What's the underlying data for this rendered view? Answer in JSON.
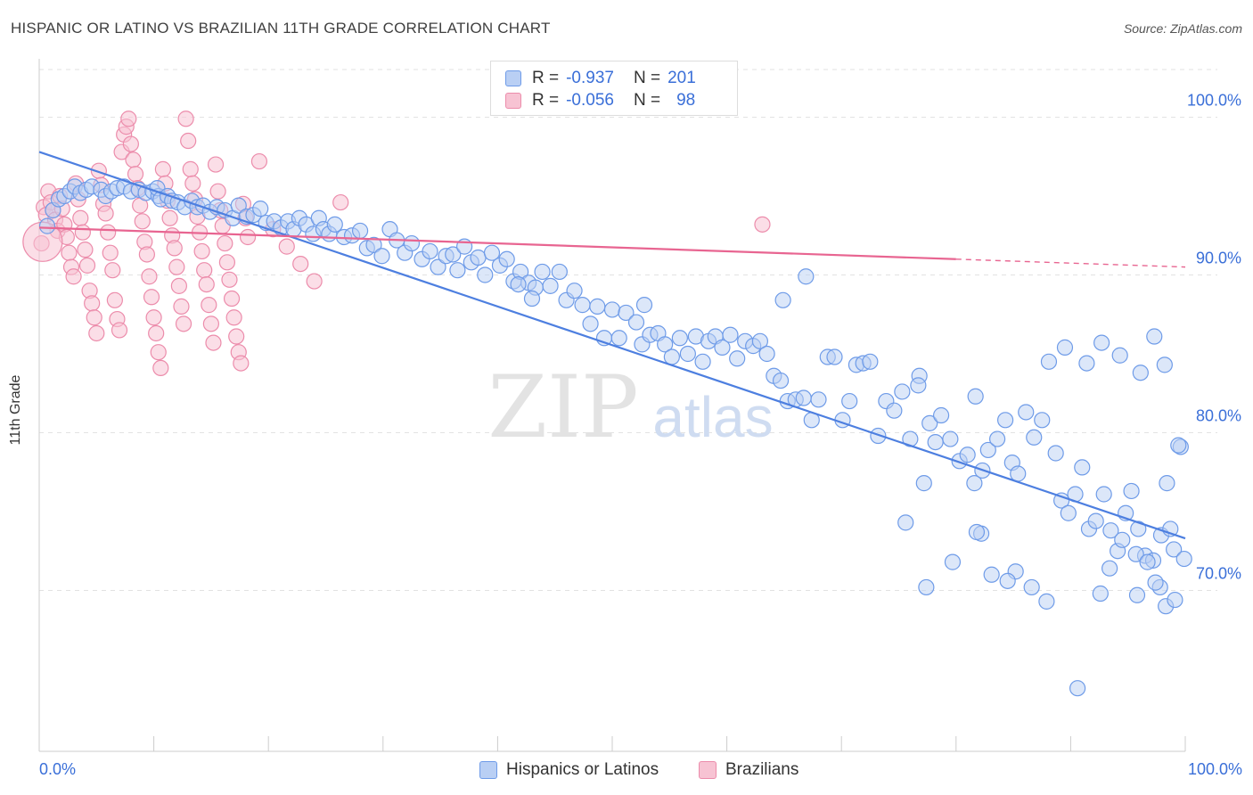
{
  "header": {
    "title": "HISPANIC OR LATINO VS BRAZILIAN 11TH GRADE CORRELATION CHART",
    "source": "Source: ZipAtlas.com"
  },
  "watermark": {
    "zip": "ZIP",
    "atlas": "atlas"
  },
  "legend": {
    "r_label": "R =",
    "n_label": "N =",
    "series": [
      {
        "name": "Hispanics or Latinos",
        "r": "-0.937",
        "n": "201",
        "color": "#6e9be8",
        "fill": "#b9cff4"
      },
      {
        "name": "Brazilians",
        "r": "-0.056",
        "n": "98",
        "color": "#ec8cab",
        "fill": "#f7c3d3"
      }
    ]
  },
  "chart_data": {
    "type": "scatter",
    "title": "HISPANIC OR LATINO VS BRAZILIAN 11TH GRADE CORRELATION CHART",
    "xlabel": "",
    "ylabel": "11th Grade",
    "xlim": [
      0,
      100
    ],
    "ylim": [
      59.8,
      103.7
    ],
    "x_tick_labels": [
      "0.0%",
      "100.0%"
    ],
    "y_tick_values": [
      70,
      80,
      90,
      100
    ],
    "y_tick_labels": [
      "70.0%",
      "80.0%",
      "90.0%",
      "100.0%"
    ],
    "series": [
      {
        "name": "Hispanics or Latinos",
        "color": "#4d7fe0",
        "trend": {
          "x": [
            0,
            100
          ],
          "y": [
            97.8,
            73.3
          ]
        },
        "points": [
          [
            0.7,
            93.1
          ],
          [
            1.2,
            94.1
          ],
          [
            1.7,
            94.8
          ],
          [
            2.2,
            95.0
          ],
          [
            2.7,
            95.3
          ],
          [
            3.1,
            95.6
          ],
          [
            3.6,
            95.2
          ],
          [
            4.1,
            95.4
          ],
          [
            4.6,
            95.6
          ],
          [
            5.4,
            95.4
          ],
          [
            5.8,
            95.0
          ],
          [
            6.3,
            95.3
          ],
          [
            6.8,
            95.5
          ],
          [
            7.4,
            95.6
          ],
          [
            8.0,
            95.3
          ],
          [
            8.7,
            95.4
          ],
          [
            9.3,
            95.2
          ],
          [
            9.9,
            95.3
          ],
          [
            10.4,
            95.0
          ],
          [
            10.3,
            95.5
          ],
          [
            10.6,
            94.8
          ],
          [
            11.2,
            95.0
          ],
          [
            11.6,
            94.7
          ],
          [
            12.1,
            94.6
          ],
          [
            12.7,
            94.3
          ],
          [
            13.3,
            94.7
          ],
          [
            13.8,
            94.3
          ],
          [
            14.3,
            94.4
          ],
          [
            14.9,
            94.0
          ],
          [
            15.5,
            94.3
          ],
          [
            16.2,
            94.1
          ],
          [
            16.9,
            93.6
          ],
          [
            17.4,
            94.4
          ],
          [
            18.1,
            93.7
          ],
          [
            18.7,
            93.8
          ],
          [
            19.3,
            94.2
          ],
          [
            19.8,
            93.3
          ],
          [
            20.5,
            93.4
          ],
          [
            21.1,
            93.0
          ],
          [
            21.7,
            93.4
          ],
          [
            22.2,
            92.9
          ],
          [
            22.7,
            93.6
          ],
          [
            23.3,
            93.2
          ],
          [
            23.9,
            92.6
          ],
          [
            24.4,
            93.6
          ],
          [
            24.8,
            92.9
          ],
          [
            25.3,
            92.6
          ],
          [
            25.8,
            93.2
          ],
          [
            26.6,
            92.4
          ],
          [
            27.3,
            92.5
          ],
          [
            28.0,
            92.8
          ],
          [
            28.6,
            91.7
          ],
          [
            29.2,
            91.9
          ],
          [
            29.9,
            91.2
          ],
          [
            30.6,
            92.9
          ],
          [
            31.2,
            92.2
          ],
          [
            31.9,
            91.4
          ],
          [
            32.5,
            92.0
          ],
          [
            33.4,
            91.0
          ],
          [
            34.1,
            91.5
          ],
          [
            34.8,
            90.5
          ],
          [
            35.5,
            91.2
          ],
          [
            36.1,
            91.3
          ],
          [
            36.5,
            90.3
          ],
          [
            37.1,
            91.8
          ],
          [
            37.7,
            90.8
          ],
          [
            38.3,
            91.1
          ],
          [
            38.9,
            90.0
          ],
          [
            39.5,
            91.4
          ],
          [
            40.2,
            90.6
          ],
          [
            40.8,
            91.0
          ],
          [
            41.4,
            89.6
          ],
          [
            42.0,
            90.2
          ],
          [
            42.7,
            89.5
          ],
          [
            43.3,
            89.2
          ],
          [
            43.9,
            90.2
          ],
          [
            44.6,
            89.3
          ],
          [
            45.4,
            90.2
          ],
          [
            46.0,
            88.4
          ],
          [
            46.7,
            89.0
          ],
          [
            47.4,
            88.1
          ],
          [
            48.1,
            86.9
          ],
          [
            48.7,
            88.0
          ],
          [
            49.3,
            86.0
          ],
          [
            50.0,
            87.8
          ],
          [
            50.6,
            86.0
          ],
          [
            51.2,
            87.6
          ],
          [
            52.1,
            87.0
          ],
          [
            52.6,
            85.6
          ],
          [
            53.3,
            86.2
          ],
          [
            54.0,
            86.3
          ],
          [
            54.6,
            85.6
          ],
          [
            55.2,
            84.8
          ],
          [
            55.9,
            86.0
          ],
          [
            56.6,
            85.0
          ],
          [
            57.3,
            86.1
          ],
          [
            57.9,
            84.5
          ],
          [
            58.4,
            85.8
          ],
          [
            59.0,
            86.1
          ],
          [
            59.6,
            85.4
          ],
          [
            60.3,
            86.2
          ],
          [
            60.9,
            84.7
          ],
          [
            61.6,
            85.8
          ],
          [
            62.3,
            85.5
          ],
          [
            62.9,
            85.8
          ],
          [
            63.5,
            85.0
          ],
          [
            64.1,
            83.6
          ],
          [
            64.7,
            83.3
          ],
          [
            65.3,
            82.0
          ],
          [
            66.0,
            82.1
          ],
          [
            66.7,
            82.2
          ],
          [
            67.4,
            80.8
          ],
          [
            68.0,
            82.1
          ],
          [
            68.8,
            84.8
          ],
          [
            69.4,
            84.8
          ],
          [
            70.1,
            80.8
          ],
          [
            70.7,
            82.0
          ],
          [
            71.3,
            84.3
          ],
          [
            71.9,
            84.4
          ],
          [
            72.5,
            84.5
          ],
          [
            73.2,
            79.8
          ],
          [
            73.9,
            82.0
          ],
          [
            74.6,
            81.4
          ],
          [
            75.3,
            82.6
          ],
          [
            76.0,
            79.6
          ],
          [
            76.8,
            83.6
          ],
          [
            77.2,
            76.8
          ],
          [
            77.7,
            80.6
          ],
          [
            78.2,
            79.4
          ],
          [
            78.7,
            81.1
          ],
          [
            79.5,
            79.6
          ],
          [
            80.3,
            78.2
          ],
          [
            81.0,
            78.6
          ],
          [
            81.6,
            76.8
          ],
          [
            82.3,
            77.6
          ],
          [
            82.8,
            78.9
          ],
          [
            83.6,
            79.6
          ],
          [
            84.3,
            80.8
          ],
          [
            84.9,
            78.1
          ],
          [
            85.4,
            77.4
          ],
          [
            86.1,
            81.3
          ],
          [
            86.8,
            79.7
          ],
          [
            87.5,
            80.8
          ],
          [
            88.1,
            84.5
          ],
          [
            88.7,
            78.7
          ],
          [
            89.2,
            75.7
          ],
          [
            89.8,
            74.9
          ],
          [
            90.4,
            76.1
          ],
          [
            91.0,
            77.8
          ],
          [
            91.6,
            73.9
          ],
          [
            92.2,
            74.4
          ],
          [
            92.9,
            76.1
          ],
          [
            93.5,
            73.8
          ],
          [
            94.1,
            72.5
          ],
          [
            94.8,
            74.9
          ],
          [
            95.3,
            76.3
          ],
          [
            95.9,
            73.9
          ],
          [
            96.5,
            72.2
          ],
          [
            97.2,
            71.9
          ],
          [
            97.8,
            70.2
          ],
          [
            98.4,
            76.8
          ],
          [
            99.0,
            72.6
          ],
          [
            99.6,
            79.1
          ],
          [
            76.7,
            83.0
          ],
          [
            82.2,
            73.6
          ],
          [
            85.2,
            71.2
          ],
          [
            86.6,
            70.2
          ],
          [
            95.8,
            69.7
          ],
          [
            97.4,
            70.5
          ],
          [
            98.3,
            69.0
          ],
          [
            99.1,
            69.4
          ],
          [
            92.6,
            69.8
          ],
          [
            99.9,
            72.0
          ],
          [
            93.4,
            71.4
          ],
          [
            94.5,
            73.2
          ],
          [
            95.7,
            72.3
          ],
          [
            96.7,
            71.8
          ],
          [
            97.9,
            73.5
          ],
          [
            98.7,
            73.9
          ],
          [
            75.6,
            74.3
          ],
          [
            77.4,
            70.2
          ],
          [
            79.7,
            71.8
          ],
          [
            81.8,
            73.7
          ],
          [
            83.1,
            71.0
          ],
          [
            84.5,
            70.6
          ],
          [
            87.9,
            69.3
          ],
          [
            90.6,
            63.8
          ],
          [
            91.4,
            84.4
          ],
          [
            92.7,
            85.7
          ],
          [
            94.3,
            84.9
          ],
          [
            96.1,
            83.8
          ],
          [
            98.2,
            84.3
          ],
          [
            41.8,
            89.4
          ],
          [
            43.0,
            88.5
          ],
          [
            52.8,
            88.1
          ],
          [
            64.9,
            88.4
          ],
          [
            66.9,
            89.9
          ],
          [
            81.7,
            82.3
          ],
          [
            89.5,
            85.4
          ],
          [
            97.3,
            86.1
          ],
          [
            99.4,
            79.2
          ]
        ]
      },
      {
        "name": "Brazilians",
        "color": "#e86591",
        "trend": {
          "x": [
            0,
            80
          ],
          "y": [
            93.0,
            91.0
          ]
        },
        "trend_dashed": {
          "x": [
            80,
            100
          ],
          "y": [
            91.0,
            90.5
          ]
        },
        "points": [
          [
            0.2,
            92.0
          ],
          [
            0.4,
            94.3
          ],
          [
            0.6,
            93.8
          ],
          [
            0.8,
            95.3
          ],
          [
            1.0,
            94.6
          ],
          [
            1.2,
            94.1
          ],
          [
            1.4,
            93.5
          ],
          [
            1.6,
            92.8
          ],
          [
            1.8,
            95.0
          ],
          [
            2.0,
            94.2
          ],
          [
            2.2,
            93.2
          ],
          [
            2.4,
            92.4
          ],
          [
            2.6,
            91.4
          ],
          [
            2.8,
            90.5
          ],
          [
            3.0,
            89.9
          ],
          [
            3.2,
            95.8
          ],
          [
            3.4,
            94.8
          ],
          [
            3.6,
            93.6
          ],
          [
            3.8,
            92.7
          ],
          [
            4.0,
            91.6
          ],
          [
            4.2,
            90.6
          ],
          [
            4.4,
            89.0
          ],
          [
            4.6,
            88.2
          ],
          [
            4.8,
            87.3
          ],
          [
            5.0,
            86.3
          ],
          [
            5.2,
            96.6
          ],
          [
            5.4,
            95.7
          ],
          [
            5.6,
            94.5
          ],
          [
            5.8,
            93.9
          ],
          [
            6.0,
            92.7
          ],
          [
            6.2,
            91.4
          ],
          [
            6.4,
            90.3
          ],
          [
            6.6,
            88.4
          ],
          [
            6.8,
            87.2
          ],
          [
            7.0,
            86.5
          ],
          [
            7.2,
            97.8
          ],
          [
            7.4,
            98.9
          ],
          [
            7.6,
            99.4
          ],
          [
            7.8,
            99.9
          ],
          [
            8.0,
            98.3
          ],
          [
            8.2,
            97.3
          ],
          [
            8.4,
            96.4
          ],
          [
            8.6,
            95.5
          ],
          [
            8.8,
            94.4
          ],
          [
            9.0,
            93.4
          ],
          [
            9.2,
            92.1
          ],
          [
            9.4,
            91.3
          ],
          [
            9.6,
            89.9
          ],
          [
            9.8,
            88.6
          ],
          [
            10.0,
            87.3
          ],
          [
            10.2,
            86.3
          ],
          [
            10.4,
            85.1
          ],
          [
            10.6,
            84.1
          ],
          [
            10.8,
            96.7
          ],
          [
            11.0,
            95.8
          ],
          [
            11.2,
            94.7
          ],
          [
            11.4,
            93.6
          ],
          [
            11.6,
            92.5
          ],
          [
            11.8,
            91.7
          ],
          [
            12.0,
            90.5
          ],
          [
            12.2,
            89.3
          ],
          [
            12.4,
            88.0
          ],
          [
            12.6,
            86.9
          ],
          [
            12.8,
            99.9
          ],
          [
            13.0,
            98.5
          ],
          [
            13.2,
            96.7
          ],
          [
            13.4,
            95.8
          ],
          [
            13.6,
            94.8
          ],
          [
            13.8,
            93.7
          ],
          [
            14.0,
            92.7
          ],
          [
            14.2,
            91.5
          ],
          [
            14.4,
            90.3
          ],
          [
            14.6,
            89.4
          ],
          [
            14.8,
            88.1
          ],
          [
            15.0,
            86.9
          ],
          [
            15.2,
            85.7
          ],
          [
            15.4,
            97.0
          ],
          [
            15.6,
            95.3
          ],
          [
            15.8,
            94.1
          ],
          [
            16.0,
            93.1
          ],
          [
            16.2,
            92.0
          ],
          [
            16.4,
            90.8
          ],
          [
            16.6,
            89.7
          ],
          [
            16.8,
            88.5
          ],
          [
            17.0,
            87.3
          ],
          [
            17.2,
            86.1
          ],
          [
            17.4,
            85.1
          ],
          [
            17.6,
            84.4
          ],
          [
            17.8,
            94.5
          ],
          [
            18.0,
            93.6
          ],
          [
            18.2,
            92.4
          ],
          [
            26.3,
            94.6
          ],
          [
            63.1,
            93.2
          ],
          [
            19.2,
            97.2
          ],
          [
            20.4,
            92.9
          ],
          [
            21.6,
            91.8
          ],
          [
            22.8,
            90.7
          ],
          [
            24.0,
            89.6
          ]
        ]
      }
    ]
  }
}
